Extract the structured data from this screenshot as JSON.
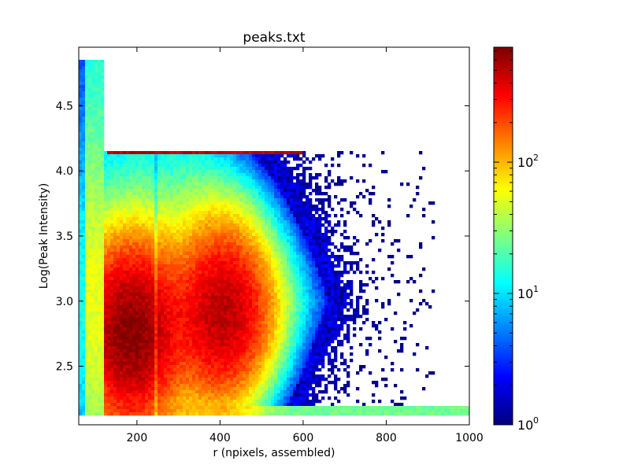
{
  "chart_data": {
    "type": "heatmap",
    "title": "peaks.txt",
    "xlabel": "r (npixels, assembled)",
    "ylabel": "Log(Peak Intensity)",
    "xlim": [
      60,
      1000
    ],
    "ylim": [
      2.05,
      4.95
    ],
    "x_ticks": [
      {
        "value": 200,
        "label": "200"
      },
      {
        "value": 400,
        "label": "400"
      },
      {
        "value": 600,
        "label": "600"
      },
      {
        "value": 800,
        "label": "800"
      },
      {
        "value": 1000,
        "label": "1000"
      }
    ],
    "y_ticks": [
      {
        "value": 2.5,
        "label": "2.5"
      },
      {
        "value": 3.0,
        "label": "3.0"
      },
      {
        "value": 3.5,
        "label": "3.5"
      },
      {
        "value": 4.0,
        "label": "4.0"
      },
      {
        "value": 4.5,
        "label": "4.5"
      }
    ],
    "colorbar": {
      "scale": "log",
      "colormap": "jet",
      "range": [
        1,
        750
      ],
      "ticks": [
        {
          "value": 1,
          "base": "10",
          "exp": "0"
        },
        {
          "value": 10,
          "base": "10",
          "exp": "1"
        },
        {
          "value": 100,
          "base": "10",
          "exp": "2"
        }
      ]
    },
    "grid": false,
    "features": {
      "ceiling_band_r_max": 120,
      "ceiling_intensity": 4.85,
      "saturation_line_intensity": 4.15,
      "saturation_line_r_range": [
        120,
        620
      ],
      "floor_intensity": 2.12,
      "hotspots": [
        {
          "r": 185,
          "log_intensity": 2.75,
          "count": 700
        },
        {
          "r": 410,
          "log_intensity": 2.9,
          "count": 500
        }
      ],
      "dark_stripe_r": 245
    }
  }
}
